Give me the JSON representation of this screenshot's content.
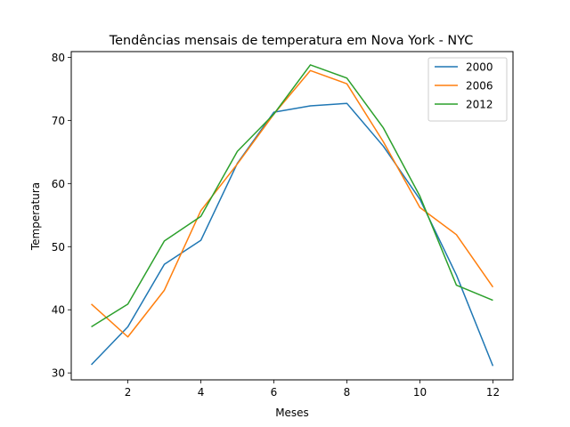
{
  "chart_data": {
    "type": "line",
    "title": "Tendências mensais de temperatura em Nova York - NYC",
    "xlabel": "Meses",
    "ylabel": "Temperatura",
    "xlim": [
      0.45,
      12.55
    ],
    "ylim": [
      28.9,
      80.9
    ],
    "xticks": [
      2,
      4,
      6,
      8,
      10,
      12
    ],
    "yticks": [
      30,
      40,
      50,
      60,
      70,
      80
    ],
    "grid": false,
    "legend_position": "top-right",
    "x": [
      1,
      2,
      3,
      4,
      5,
      6,
      7,
      8,
      9,
      10,
      11,
      12
    ],
    "series": [
      {
        "name": "2000",
        "color": "#1f77b4",
        "values": [
          31.3,
          37.3,
          47.2,
          51.0,
          63.2,
          71.3,
          72.3,
          72.7,
          65.9,
          57.5,
          45.5,
          31.1
        ]
      },
      {
        "name": "2006",
        "color": "#ff7f0e",
        "values": [
          40.9,
          35.7,
          43.1,
          55.7,
          63.1,
          71.0,
          77.9,
          75.8,
          66.6,
          56.2,
          51.9,
          43.6
        ]
      },
      {
        "name": "2012",
        "color": "#2ca02c",
        "values": [
          37.3,
          40.9,
          50.9,
          54.8,
          65.1,
          71.0,
          78.8,
          76.7,
          68.8,
          58.0,
          43.9,
          41.5
        ]
      }
    ]
  }
}
